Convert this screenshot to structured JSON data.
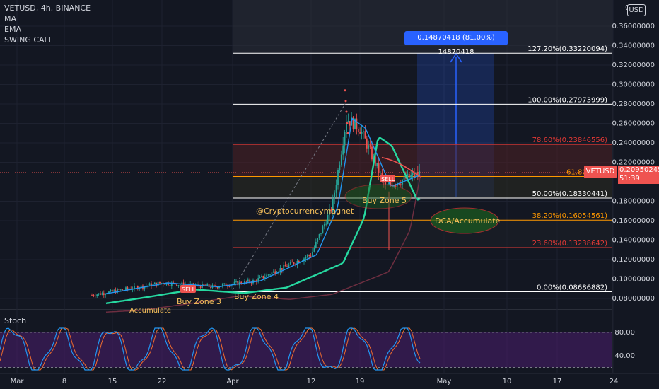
{
  "legend": {
    "symbol_line": "VETUSD, 4h, BINANCE",
    "indicators": [
      "MA",
      "EMA",
      "SWING CALL"
    ],
    "stoch_label": "Stoch"
  },
  "currency_button": "USD",
  "price_axis": [
    "0.36000000",
    "0.34000000",
    "0.32000000",
    "0.30000000",
    "0.28000000",
    "0.26000000",
    "0.24000000",
    "0.22000000",
    "0.18000000",
    "0.16000000",
    "0.14000000",
    "0.12000000",
    "0.10000000",
    "0.08000000"
  ],
  "price_axis_top": "0.3",
  "stoch_axis": [
    "80.00",
    "40.00"
  ],
  "time_axis": [
    "Mar",
    "8",
    "15",
    "22",
    "Apr",
    "12",
    "19",
    "May",
    "10",
    "17",
    "24"
  ],
  "current_price": {
    "symbol": "VETUSD",
    "value": "0.20950245",
    "countdown": "51:39"
  },
  "projection_tooltip": "0.14870418 (81.00%) 14870418",
  "fib_levels": [
    {
      "label": "127.20%(0.33220094)",
      "value": 0.33220094,
      "color": "#ffffff"
    },
    {
      "label": "100.00%(0.27973999)",
      "value": 0.27973999,
      "color": "#ffffff"
    },
    {
      "label": "78.60%(0.23846556)",
      "value": 0.23846556,
      "color": "#e53935"
    },
    {
      "label": "61.80%(0.2",
      "value": 0.2055,
      "color": "#ff9800"
    },
    {
      "label": "50.00%(0.18330441)",
      "value": 0.18330441,
      "color": "#ffffff"
    },
    {
      "label": "38.20%(0.16054561)",
      "value": 0.16054561,
      "color": "#ff9800"
    },
    {
      "label": "23.60%(0.13238642)",
      "value": 0.13238642,
      "color": "#e53935"
    },
    {
      "label": "0.00%(0.08686882)",
      "value": 0.08686882,
      "color": "#ffffff"
    }
  ],
  "annotations": {
    "credit": "@Cryptocurrencymagnet",
    "buy_zone_3": "Buy Zone 3",
    "buy_zone_4": "Buy Zone 4",
    "buy_zone_5": "Buy Zone 5",
    "dca": "DCA/Accumulate",
    "accumulate_small": "Accumulate",
    "sell_1": "SELL",
    "sell_2": "SELL"
  },
  "chart_data": {
    "type": "line",
    "title": "VETUSD, 4h, BINANCE",
    "series": [
      {
        "name": "VETUSD",
        "x": [
          "Mar 1",
          "Mar 8",
          "Mar 15",
          "Mar 22",
          "Mar 29",
          "Apr 5",
          "Apr 12",
          "Apr 15",
          "Apr 17",
          "Apr 19",
          "Apr 22",
          "Apr 25"
        ],
        "values": [
          0.075,
          0.079,
          0.087,
          0.096,
          0.092,
          0.098,
          0.125,
          0.175,
          0.265,
          0.255,
          0.195,
          0.2095
        ]
      }
    ],
    "ylim": [
      0.075,
      0.37
    ],
    "ylabel": "",
    "xlabel": "",
    "log_scale": false,
    "grid": true
  }
}
